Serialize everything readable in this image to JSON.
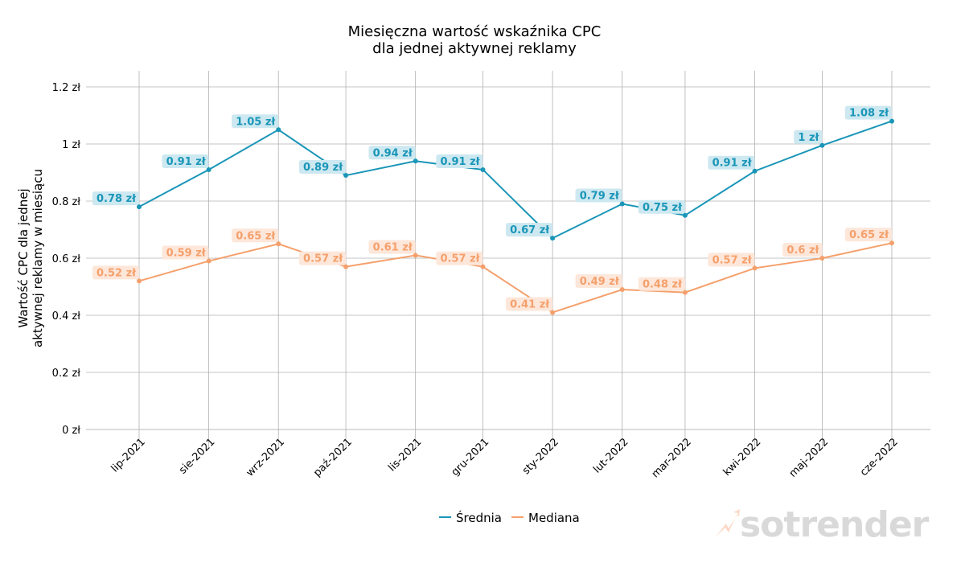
{
  "chart_data": {
    "type": "line",
    "title": "Miesięczna wartość wskaźnika CPC\ndla jednej aktywnej reklamy",
    "title_lines": [
      "Miesięczna wartość wskaźnika CPC",
      "dla jednej aktywnej reklamy"
    ],
    "xlabel": "",
    "ylabel": "Wartość CPC dla jednej\naktywnej reklamy w miesiącu",
    "ylabel_lines": [
      "Wartość CPC dla jednej",
      "aktywnej reklamy w miesiącu"
    ],
    "ylim": [
      0,
      1.25
    ],
    "yticks": [
      0,
      0.2,
      0.4,
      0.6,
      0.8,
      1,
      1.2
    ],
    "ytick_labels": [
      "0 zł",
      "0.2 zł",
      "0.4 zł",
      "0.6 zł",
      "0.8 zł",
      "1 zł",
      "1.2 zł"
    ],
    "categories": [
      "lip-2021",
      "sie-2021",
      "wrz-2021",
      "paź-2021",
      "lis-2021",
      "gru-2021",
      "sty-2022",
      "lut-2022",
      "mar-2022",
      "kwi-2022",
      "maj-2022",
      "cze-2022"
    ],
    "x_days": [
      0,
      31,
      62,
      92,
      123,
      153,
      184,
      215,
      243,
      274,
      304,
      335
    ],
    "grid": true,
    "legend_position": "bottom-center",
    "series": [
      {
        "name": "Średnia",
        "color": "#1a96b8",
        "label_bg": "#cde8f0",
        "values": [
          0.78,
          0.91,
          1.05,
          0.89,
          0.94,
          0.91,
          0.67,
          0.79,
          0.75,
          0.905,
          0.995,
          1.08
        ],
        "labels": [
          "0.78 zł",
          "0.91 zł",
          "1.05 zł",
          "0.89 zł",
          "0.94 zł",
          "0.91 zł",
          "0.67 zł",
          "0.79 zł",
          "0.75 zł",
          "0.91 zł",
          "1 zł",
          "1.08 zł"
        ]
      },
      {
        "name": "Mediana",
        "color": "#f5a06c",
        "label_bg": "#fde7da",
        "values": [
          0.52,
          0.59,
          0.65,
          0.57,
          0.61,
          0.57,
          0.41,
          0.49,
          0.48,
          0.565,
          0.6,
          0.653
        ],
        "labels": [
          "0.52 zł",
          "0.59 zł",
          "0.65 zł",
          "0.57 zł",
          "0.61 zł",
          "0.57 zł",
          "0.41 zł",
          "0.49 zł",
          "0.48 zł",
          "0.57 zł",
          "0.6 zł",
          "0.65 zł"
        ]
      }
    ]
  },
  "watermark": {
    "text": "sotrender",
    "text_color": "#d9d9d9",
    "icon": "trend-arrow-icon",
    "icon_color": "#fbd9c6"
  },
  "colors": {
    "grid": "#b0b0b0",
    "axis_bottom": "#d0d0d0"
  }
}
